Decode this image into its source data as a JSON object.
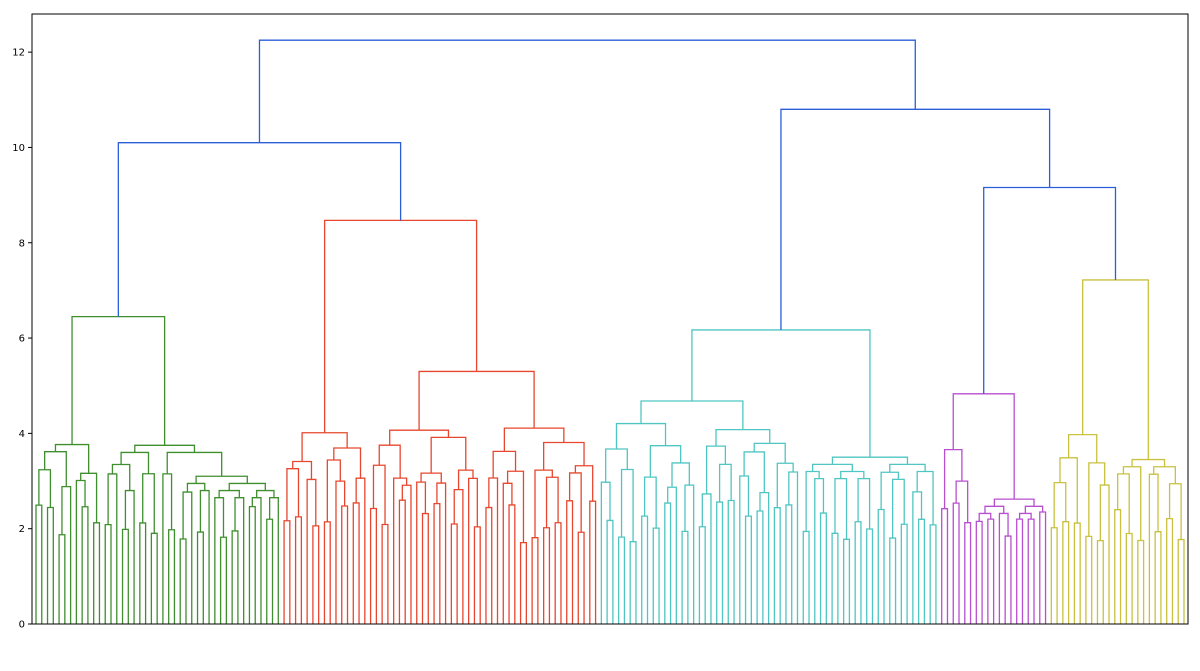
{
  "chart_data": {
    "type": "dendrogram",
    "title": "",
    "xlabel": "",
    "ylabel": "",
    "ylim": [
      0,
      12.8
    ],
    "yticks": [
      0,
      2,
      4,
      6,
      8,
      10,
      12
    ],
    "grid": false,
    "leaf_count": 200,
    "leaf_labels_readable": false,
    "leaf_labels": [],
    "clusters": [
      {
        "color": "#3f8f2f",
        "leaves": [
          0,
          43
        ],
        "merge_height": 6.45
      },
      {
        "color": "#e8472f",
        "leaves": [
          43,
          98
        ],
        "merge_height": 8.47
      },
      {
        "color": "#4fc6c2",
        "leaves": [
          98,
          157
        ],
        "merge_height": 6.17
      },
      {
        "color": "#b84fcf",
        "leaves": [
          157,
          176
        ],
        "merge_height": 4.83
      },
      {
        "color": "#c9c13f",
        "leaves": [
          176,
          200
        ],
        "merge_height": 7.22
      }
    ],
    "upper_color": "#2b5fd9",
    "upper_merges": [
      {
        "left": 0,
        "right": 1,
        "height": 10.1
      },
      {
        "left": 3,
        "right": 4,
        "height": 9.16
      },
      {
        "left": 2,
        "right": "m1",
        "height": 10.8
      },
      {
        "left": "m0",
        "right": "m2",
        "height": 12.25
      }
    ],
    "sub_merges": [
      {
        "cluster": 0,
        "splits": [
          [
            0,
            12,
            4.5
          ],
          [
            12,
            22,
            3.75
          ],
          [
            22,
            43,
            5.2
          ],
          [
            22,
            25,
            3.6
          ],
          [
            25,
            43,
            4.9
          ],
          [
            25,
            31,
            3.1
          ],
          [
            31,
            43,
            3.9
          ]
        ]
      },
      {
        "cluster": 1,
        "splits": [
          [
            43,
            58,
            4.73
          ],
          [
            58,
            98,
            7.53
          ],
          [
            58,
            78,
            5.3
          ],
          [
            78,
            98,
            5.3
          ],
          [
            62,
            78,
            5.08
          ],
          [
            80,
            98,
            4.5
          ]
        ]
      },
      {
        "cluster": 2,
        "splits": [
          [
            98,
            133,
            5.62
          ],
          [
            133,
            157,
            5.98
          ],
          [
            98,
            115,
            4.68
          ],
          [
            115,
            133,
            4.75
          ],
          [
            146,
            157,
            4.33
          ],
          [
            133,
            146,
            3.5
          ]
        ]
      },
      {
        "cluster": 3,
        "splits": [
          [
            157,
            163,
            3.05
          ],
          [
            163,
            176,
            3.72
          ],
          [
            163,
            170,
            2.62
          ],
          [
            170,
            176,
            3.3
          ]
        ]
      },
      {
        "cluster": 4,
        "splits": [
          [
            176,
            187,
            3.05
          ],
          [
            187,
            200,
            5.08
          ],
          [
            187,
            193,
            3.45
          ],
          [
            193,
            200,
            4.33
          ]
        ]
      }
    ]
  }
}
